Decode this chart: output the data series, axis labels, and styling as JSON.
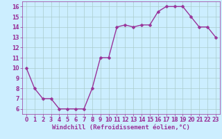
{
  "x": [
    0,
    1,
    2,
    3,
    4,
    5,
    6,
    7,
    8,
    9,
    10,
    11,
    12,
    13,
    14,
    15,
    16,
    17,
    18,
    19,
    20,
    21,
    22,
    23
  ],
  "y": [
    10,
    8,
    7,
    7,
    6,
    6,
    6,
    6,
    8,
    11,
    11,
    14,
    14.2,
    14,
    14.2,
    14.2,
    15.5,
    16,
    16,
    16,
    15,
    14,
    14,
    13
  ],
  "line_color": "#993399",
  "marker_color": "#993399",
  "bg_color": "#cceeff",
  "grid_color": "#aacccc",
  "xlabel": "Windchill (Refroidissement éolien,°C)",
  "xlabel_color": "#993399",
  "xlim": [
    -0.5,
    23.5
  ],
  "ylim": [
    5.5,
    16.5
  ],
  "yticks": [
    6,
    7,
    8,
    9,
    10,
    11,
    12,
    13,
    14,
    15,
    16
  ],
  "xticks": [
    0,
    1,
    2,
    3,
    4,
    5,
    6,
    7,
    8,
    9,
    10,
    11,
    12,
    13,
    14,
    15,
    16,
    17,
    18,
    19,
    20,
    21,
    22,
    23
  ],
  "tick_color": "#993399",
  "tick_fontsize": 5.5,
  "xlabel_fontsize": 6.5,
  "line_width": 1.0,
  "marker_size": 2.5
}
